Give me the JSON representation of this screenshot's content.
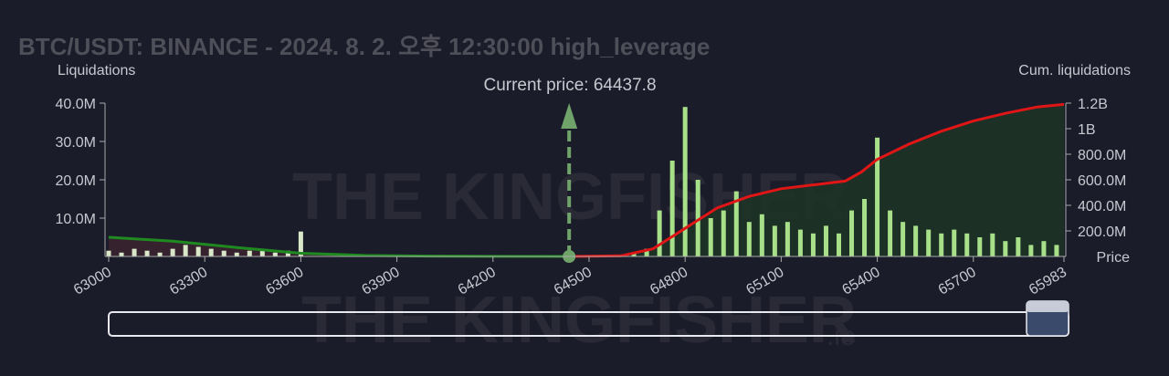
{
  "chart_data": {
    "type": "liquidation_map",
    "title": "BTC/USDT: BINANCE - 2024. 8. 2. 오후 12:30:00 high_leverage",
    "y_label": "Liquidations",
    "y2_label": "Cum. liquidations",
    "x_label": "Price",
    "watermark": "THE KINGFISHER",
    "watermark_suffix": ".io",
    "annotation": "Current price: 64437.8",
    "current_price": 64437.8,
    "marker_color": "#6fa36a",
    "xlim": [
      63000,
      65983
    ],
    "xticks": [
      63000,
      63300,
      63600,
      63900,
      64200,
      64500,
      64800,
      65100,
      65400,
      65700,
      65983
    ],
    "ylim": [
      0,
      40000000
    ],
    "yticks": [
      {
        "value": 10000000,
        "label": "10.0M"
      },
      {
        "value": 20000000,
        "label": "20.0M"
      },
      {
        "value": 30000000,
        "label": "30.0M"
      },
      {
        "value": 40000000,
        "label": "40.0M"
      }
    ],
    "y2lim": [
      0,
      1200000000
    ],
    "y2ticks": [
      {
        "value": 200000000,
        "label": "200.0M"
      },
      {
        "value": 400000000,
        "label": "400.0M"
      },
      {
        "value": 600000000,
        "label": "600.0M"
      },
      {
        "value": 800000000,
        "label": "800.0M"
      },
      {
        "value": 1000000000,
        "label": "1B"
      },
      {
        "value": 1200000000,
        "label": "1.2B"
      }
    ],
    "series": [
      {
        "color": "#d8e8c8",
        "x": [
          63000,
          63040,
          63080,
          63120,
          63160,
          63200,
          63240,
          63280,
          63320,
          63360,
          63400,
          63440,
          63480,
          63520,
          63560,
          63600
        ],
        "values": [
          1500000,
          1000000,
          2000000,
          1500000,
          1000000,
          2000000,
          3000000,
          2500000,
          2000000,
          1500000,
          1000000,
          1500000,
          2000000,
          1000000,
          1500000,
          6500000
        ]
      },
      {
        "color": "#a8e08a",
        "x": [
          64640,
          64680,
          64720,
          64760,
          64800,
          64840,
          64880,
          64920,
          64960,
          65000,
          65040,
          65080,
          65120,
          65160,
          65200,
          65240,
          65280,
          65320,
          65360,
          65400,
          65440,
          65480,
          65520,
          65560,
          65600,
          65640,
          65680,
          65720,
          65760,
          65800,
          65840,
          65880,
          65920,
          65960
        ],
        "values": [
          800000,
          2000000,
          12000000,
          25000000,
          39000000,
          20000000,
          10000000,
          12000000,
          17000000,
          9000000,
          11000000,
          8000000,
          9000000,
          7000000,
          6000000,
          8000000,
          6000000,
          12000000,
          15000000,
          31000000,
          12000000,
          9000000,
          8000000,
          7000000,
          6000000,
          7000000,
          6000000,
          5000000,
          6000000,
          4000000,
          5000000,
          3000000,
          4000000,
          3000000
        ]
      }
    ],
    "cumulative": [
      {
        "axis": "y2",
        "color": "#1f8a1f",
        "fill": "#3a2430",
        "x": [
          63000,
          63200,
          63400,
          63600,
          63800,
          64000,
          64200,
          64437.8
        ],
        "values": [
          150000000,
          120000000,
          70000000,
          25000000,
          8000000,
          3000000,
          1000000,
          0
        ]
      },
      {
        "axis": "y2",
        "color": "#e01515",
        "fill": "#1d3326",
        "x": [
          64437.8,
          64600,
          64700,
          64800,
          64900,
          65000,
          65100,
          65200,
          65300,
          65350,
          65400,
          65500,
          65600,
          65700,
          65800,
          65900,
          65983
        ],
        "values": [
          0,
          5000000,
          60000000,
          220000000,
          380000000,
          470000000,
          530000000,
          560000000,
          590000000,
          660000000,
          760000000,
          880000000,
          980000000,
          1060000000,
          1120000000,
          1170000000,
          1190000000
        ]
      }
    ]
  }
}
